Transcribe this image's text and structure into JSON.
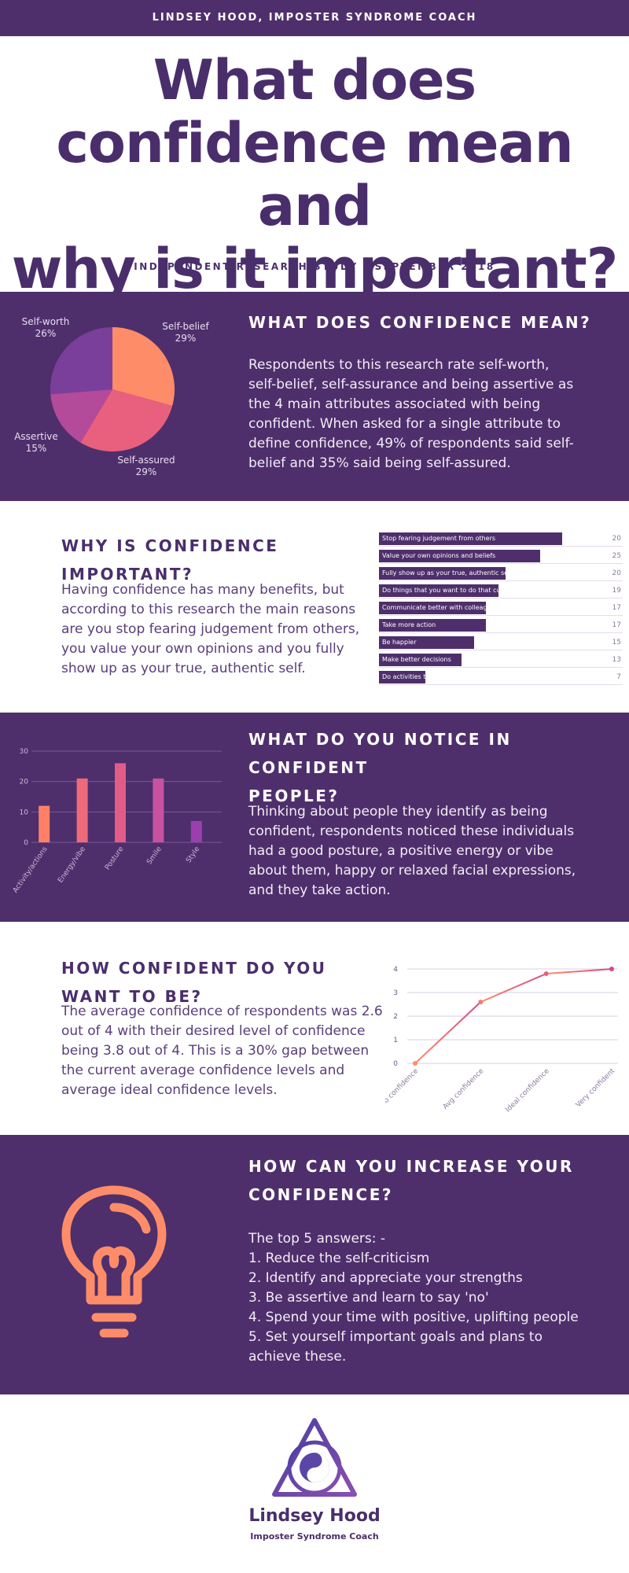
{
  "header": {
    "bar_text": "LINDSEY HOOD, IMPOSTER SYNDROME COACH",
    "title_lines": [
      "What does",
      "confidence mean and",
      "why is it important?"
    ],
    "subtitle": "INDEPENDENT RESEARCH STUDY - SEPTEMBER 2018"
  },
  "colors": {
    "purple": "#4e2f6b",
    "orange": "#ff8c69",
    "pink": "#e8607e",
    "magenta": "#b44a9a",
    "violet": "#7a3f9a"
  },
  "sections": {
    "meaning": {
      "heading": "WHAT DOES CONFIDENCE MEAN?",
      "text": "Respondents to this research rate self-worth, self-belief, self-assurance and being assertive as the 4 main attributes associated with being confident. When asked for a single attribute to define confidence, 49% of respondents said  self-belief and 35% said being self-assured."
    },
    "importance": {
      "heading": "WHY IS CONFIDENCE IMPORTANT?",
      "text": "Having confidence has many benefits, but according to this research the main reasons are  you stop fearing judgement from others, you value your own opinions and you fully show up as your true, authentic self."
    },
    "notice": {
      "heading_lines": [
        "WHAT DO YOU NOTICE IN CONFIDENT",
        "PEOPLE?"
      ],
      "text": "Thinking about people they identify as being confident, respondents noticed these individuals had a good posture, a positive energy or vibe about them, happy or relaxed facial expressions, and they take action."
    },
    "desire": {
      "heading": "HOW CONFIDENT DO YOU WANT TO BE?",
      "text": "The average confidence of respondents was 2.6 out of 4 with their desired level of confidence being 3.8 out of 4. This is a 30% gap between the current average confidence levels and average ideal confidence levels."
    },
    "increase": {
      "heading_lines": [
        "HOW CAN YOU INCREASE YOUR",
        "CONFIDENCE?"
      ],
      "icon": "lightbulb-icon",
      "list": [
        "The top 5 answers: -",
        "1. Reduce the self-criticism",
        "2. Identify and appreciate your strengths",
        "3. Be assertive and learn to say 'no'",
        "4. Spend your time with positive, uplifting people",
        "5. Set yourself important goals and plans to achieve these."
      ]
    }
  },
  "footer": {
    "logo": "triangle-yin-yang-logo",
    "name": "Lindsey Hood",
    "tagline": "Imposter Syndrome Coach"
  },
  "chart_data": [
    {
      "type": "pie",
      "title": "",
      "categories": [
        "Self-belief",
        "Self-assured",
        "Assertive",
        "Self-worth"
      ],
      "values": [
        29,
        29,
        15,
        26
      ],
      "labels": [
        "29%",
        "29%",
        "15%",
        "26%"
      ]
    },
    {
      "type": "bar",
      "orientation": "horizontal",
      "title": "",
      "categories": [
        "Stop fearing judgement from others",
        "Value your own opinions and beliefs",
        "Fully show up as your true, authentic self",
        "Do things that you want to do that currently scare you",
        "Communicate better with colleagues, friends and family",
        "Take more action",
        "Be happier",
        "Make better decisions",
        "Do activities that you love"
      ],
      "values": [
        20,
        25,
        20,
        19,
        17,
        17,
        15,
        13,
        7
      ],
      "fill_fraction": [
        0.75,
        0.66,
        0.52,
        0.49,
        0.44,
        0.44,
        0.39,
        0.34,
        0.19
      ]
    },
    {
      "type": "bar",
      "title": "",
      "categories": [
        "Activity/actions",
        "Energy/vibe",
        "Posture",
        "Smile",
        "Style"
      ],
      "values": [
        12,
        21,
        26,
        21,
        7
      ],
      "ylim": [
        0,
        30
      ],
      "yticks": [
        0,
        10,
        20,
        30
      ]
    },
    {
      "type": "line",
      "title": "",
      "categories": [
        "No confidence",
        "Avg confidence",
        "Ideal confidence",
        "Very confident"
      ],
      "values": [
        0,
        2.6,
        3.8,
        4
      ],
      "ylim": [
        0,
        4
      ],
      "yticks": [
        0,
        1,
        2,
        3,
        4
      ]
    }
  ]
}
